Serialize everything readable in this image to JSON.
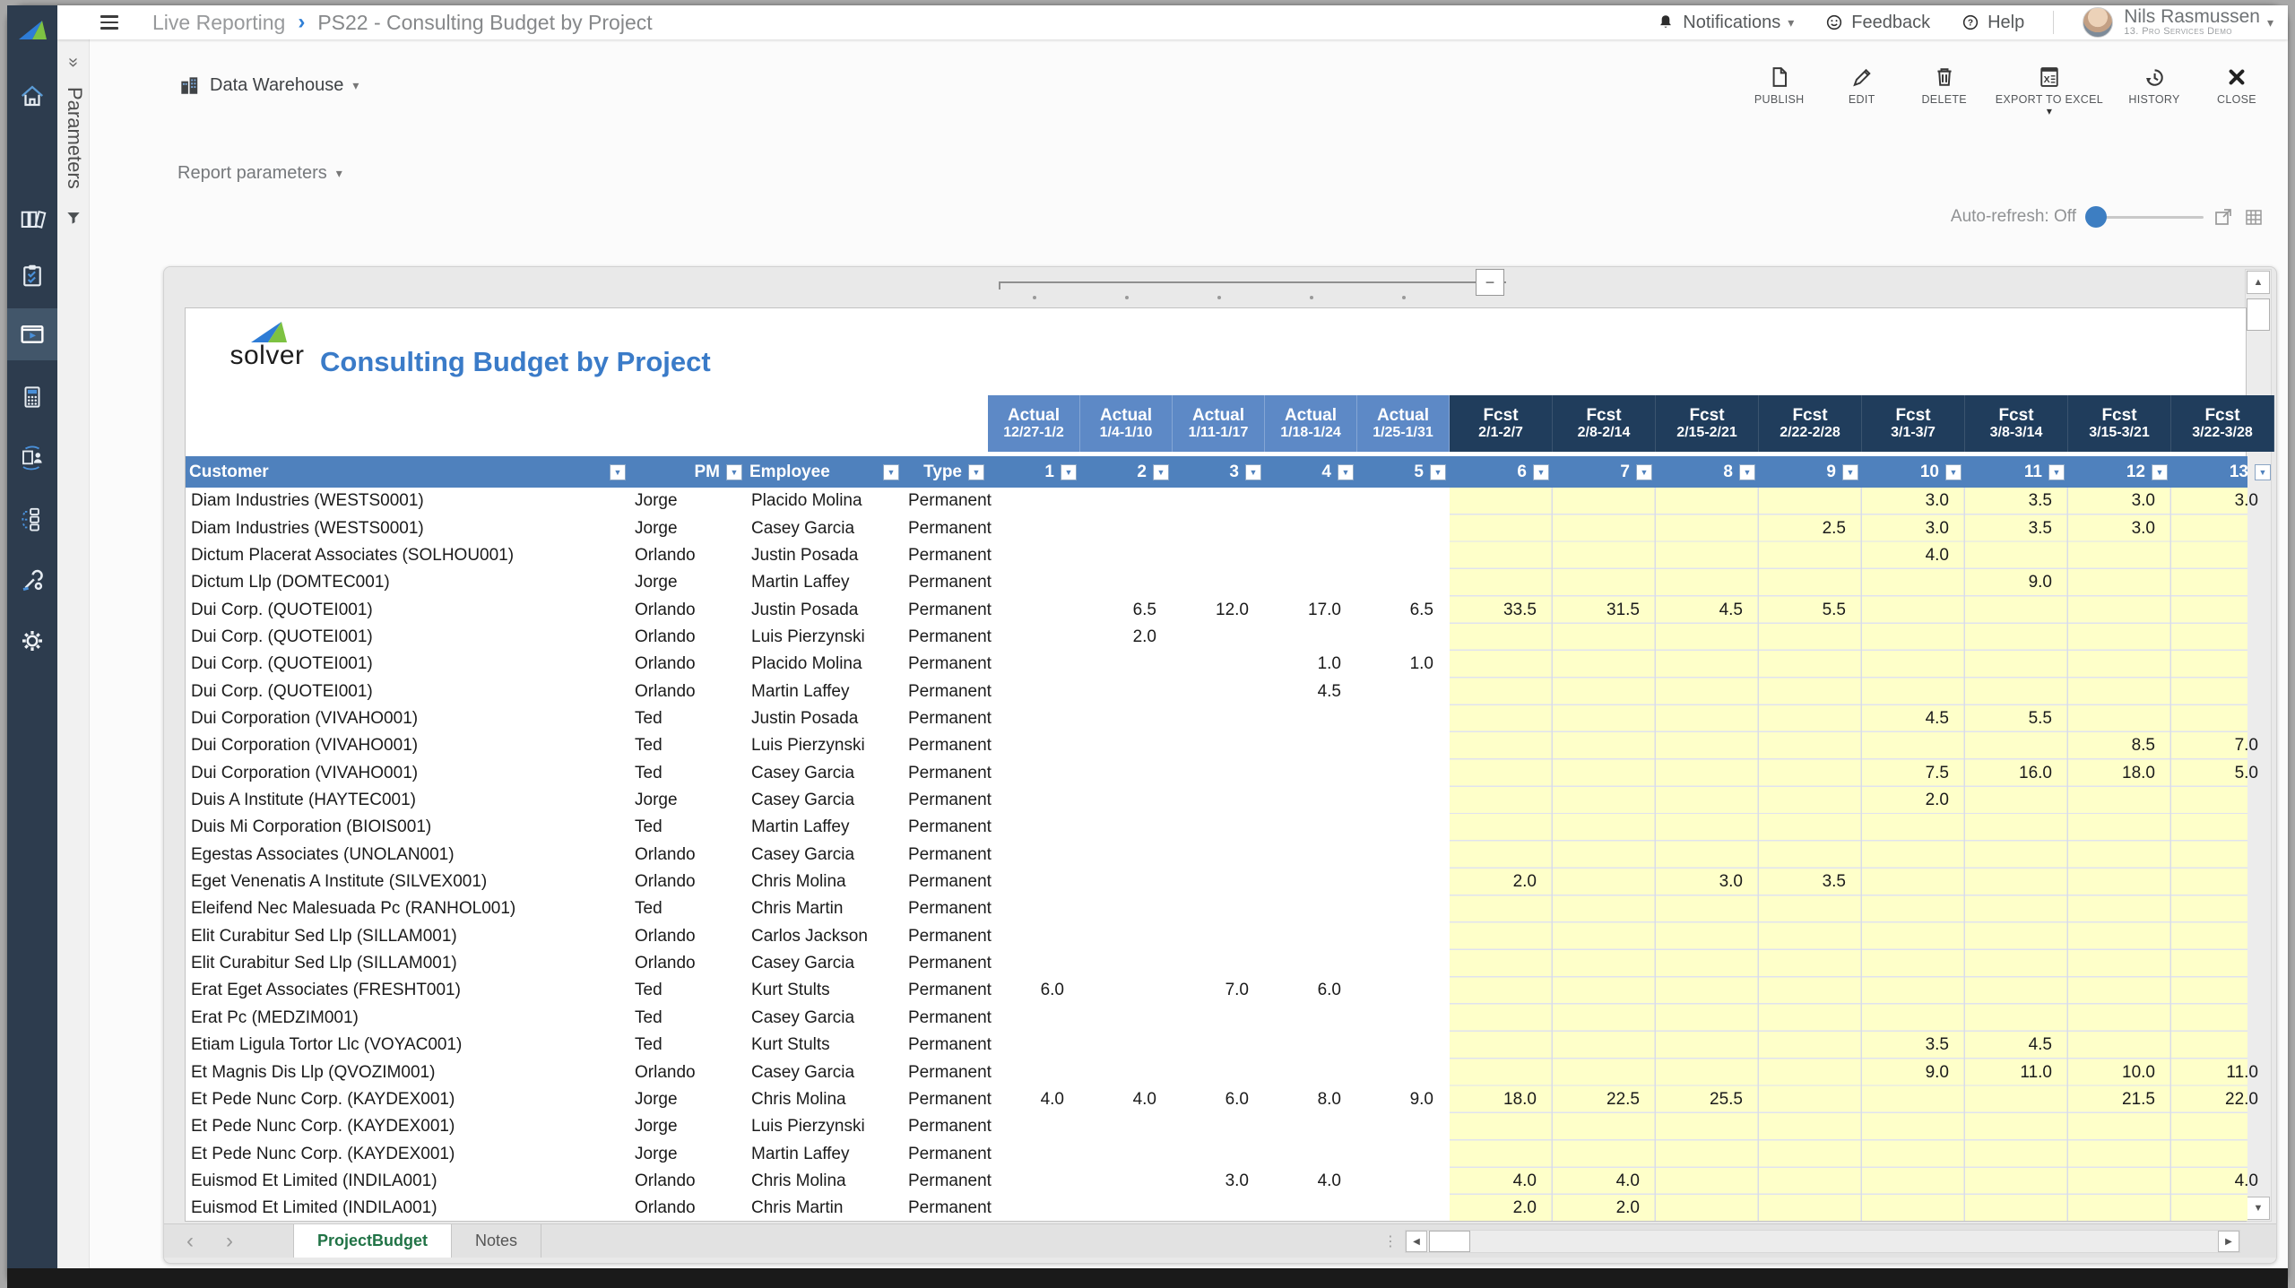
{
  "topbar": {
    "breadcrumb": {
      "section": "Live Reporting",
      "separator": "›",
      "page": "PS22 - Consulting Budget by Project"
    },
    "notifications_label": "Notifications",
    "feedback_label": "Feedback",
    "help_label": "Help",
    "user": {
      "name": "Nils Rasmussen",
      "tenant": "13. Pro Services Demo"
    }
  },
  "sidebar": {
    "items": [
      {
        "name": "home"
      },
      {
        "name": "archives"
      },
      {
        "name": "tasks"
      },
      {
        "name": "reporting",
        "active": true
      },
      {
        "name": "budgeting"
      },
      {
        "name": "collaboration"
      },
      {
        "name": "workflow"
      },
      {
        "name": "administration"
      },
      {
        "name": "settings"
      }
    ]
  },
  "parameters_rail": {
    "label": "Parameters",
    "collapse_glyph": "»"
  },
  "toolbar": {
    "source_label": "Data Warehouse",
    "buttons": [
      {
        "label": "PUBLISH"
      },
      {
        "label": "EDIT"
      },
      {
        "label": "DELETE"
      },
      {
        "label": "EXPORT TO EXCEL",
        "has_dropdown": true
      },
      {
        "label": "HISTORY"
      },
      {
        "label": "CLOSE"
      }
    ]
  },
  "report_controls": {
    "parameters_label": "Report parameters",
    "auto_refresh_label": "Auto-refresh: Off"
  },
  "report": {
    "brand": "solver",
    "title": "Consulting Budget by Project",
    "column_groups": [
      {
        "label": "Actual",
        "period": "12/27-1/2",
        "kind": "actual"
      },
      {
        "label": "Actual",
        "period": "1/4-1/10",
        "kind": "actual"
      },
      {
        "label": "Actual",
        "period": "1/11-1/17",
        "kind": "actual"
      },
      {
        "label": "Actual",
        "period": "1/18-1/24",
        "kind": "actual"
      },
      {
        "label": "Actual",
        "period": "1/25-1/31",
        "kind": "actual"
      },
      {
        "label": "Fcst",
        "period": "2/1-2/7",
        "kind": "fcst"
      },
      {
        "label": "Fcst",
        "period": "2/8-2/14",
        "kind": "fcst"
      },
      {
        "label": "Fcst",
        "period": "2/15-2/21",
        "kind": "fcst"
      },
      {
        "label": "Fcst",
        "period": "2/22-2/28",
        "kind": "fcst"
      },
      {
        "label": "Fcst",
        "period": "3/1-3/7",
        "kind": "fcst"
      },
      {
        "label": "Fcst",
        "period": "3/8-3/14",
        "kind": "fcst"
      },
      {
        "label": "Fcst",
        "period": "3/15-3/21",
        "kind": "fcst"
      },
      {
        "label": "Fcst",
        "period": "3/22-3/28",
        "kind": "fcst"
      }
    ],
    "headers": [
      "Customer",
      "PM",
      "Employee",
      "Type",
      "1",
      "2",
      "3",
      "4",
      "5",
      "6",
      "7",
      "8",
      "9",
      "10",
      "11",
      "12",
      "13"
    ],
    "rows": [
      {
        "customer": "Diam Industries (WESTS0001)",
        "pm": "Jorge",
        "employee": "Placido Molina",
        "type": "Permanent",
        "values": [
          "",
          "",
          "",
          "",
          "",
          "",
          "",
          "",
          "",
          "3.0",
          "3.5",
          "3.0",
          "3.0"
        ]
      },
      {
        "customer": "Diam Industries (WESTS0001)",
        "pm": "Jorge",
        "employee": "Casey Garcia",
        "type": "Permanent",
        "values": [
          "",
          "",
          "",
          "",
          "",
          "",
          "",
          "",
          "2.5",
          "3.0",
          "3.5",
          "3.0",
          ""
        ]
      },
      {
        "customer": "Dictum Placerat Associates (SOLHOU001)",
        "pm": "Orlando",
        "employee": "Justin Posada",
        "type": "Permanent",
        "values": [
          "",
          "",
          "",
          "",
          "",
          "",
          "",
          "",
          "",
          "4.0",
          "",
          "",
          ""
        ]
      },
      {
        "customer": "Dictum Llp (DOMTEC001)",
        "pm": "Jorge",
        "employee": "Martin Laffey",
        "type": "Permanent",
        "values": [
          "",
          "",
          "",
          "",
          "",
          "",
          "",
          "",
          "",
          "",
          "9.0",
          "",
          ""
        ]
      },
      {
        "customer": "Dui Corp. (QUOTEI001)",
        "pm": "Orlando",
        "employee": "Justin Posada",
        "type": "Permanent",
        "values": [
          "",
          "6.5",
          "12.0",
          "17.0",
          "6.5",
          "33.5",
          "31.5",
          "4.5",
          "5.5",
          "",
          "",
          "",
          ""
        ]
      },
      {
        "customer": "Dui Corp. (QUOTEI001)",
        "pm": "Orlando",
        "employee": "Luis Pierzynski",
        "type": "Permanent",
        "values": [
          "",
          "2.0",
          "",
          "",
          "",
          "",
          "",
          "",
          "",
          "",
          "",
          "",
          ""
        ]
      },
      {
        "customer": "Dui Corp. (QUOTEI001)",
        "pm": "Orlando",
        "employee": "Placido Molina",
        "type": "Permanent",
        "values": [
          "",
          "",
          "",
          "1.0",
          "1.0",
          "",
          "",
          "",
          "",
          "",
          "",
          "",
          ""
        ]
      },
      {
        "customer": "Dui Corp. (QUOTEI001)",
        "pm": "Orlando",
        "employee": "Martin Laffey",
        "type": "Permanent",
        "values": [
          "",
          "",
          "",
          "4.5",
          "",
          "",
          "",
          "",
          "",
          "",
          "",
          "",
          ""
        ]
      },
      {
        "customer": "Dui Corporation (VIVAHO001)",
        "pm": "Ted",
        "employee": "Justin Posada",
        "type": "Permanent",
        "values": [
          "",
          "",
          "",
          "",
          "",
          "",
          "",
          "",
          "",
          "4.5",
          "5.5",
          "",
          ""
        ]
      },
      {
        "customer": "Dui Corporation (VIVAHO001)",
        "pm": "Ted",
        "employee": "Luis Pierzynski",
        "type": "Permanent",
        "values": [
          "",
          "",
          "",
          "",
          "",
          "",
          "",
          "",
          "",
          "",
          "",
          "8.5",
          "7.0"
        ]
      },
      {
        "customer": "Dui Corporation (VIVAHO001)",
        "pm": "Ted",
        "employee": "Casey Garcia",
        "type": "Permanent",
        "values": [
          "",
          "",
          "",
          "",
          "",
          "",
          "",
          "",
          "",
          "7.5",
          "16.0",
          "18.0",
          "5.0"
        ]
      },
      {
        "customer": "Duis A Institute (HAYTEC001)",
        "pm": "Jorge",
        "employee": "Casey Garcia",
        "type": "Permanent",
        "values": [
          "",
          "",
          "",
          "",
          "",
          "",
          "",
          "",
          "",
          "2.0",
          "",
          "",
          ""
        ]
      },
      {
        "customer": "Duis Mi Corporation (BIOIS001)",
        "pm": "Ted",
        "employee": "Martin Laffey",
        "type": "Permanent",
        "values": [
          "",
          "",
          "",
          "",
          "",
          "",
          "",
          "",
          "",
          "",
          "",
          "",
          ""
        ]
      },
      {
        "customer": "Egestas Associates (UNOLAN001)",
        "pm": "Orlando",
        "employee": "Casey Garcia",
        "type": "Permanent",
        "values": [
          "",
          "",
          "",
          "",
          "",
          "",
          "",
          "",
          "",
          "",
          "",
          "",
          ""
        ]
      },
      {
        "customer": "Eget Venenatis A Institute (SILVEX001)",
        "pm": "Orlando",
        "employee": "Chris Molina",
        "type": "Permanent",
        "values": [
          "",
          "",
          "",
          "",
          "",
          "2.0",
          "",
          "3.0",
          "3.5",
          "",
          "",
          "",
          ""
        ]
      },
      {
        "customer": "Eleifend Nec Malesuada Pc (RANHOL001)",
        "pm": "Ted",
        "employee": "Chris Martin",
        "type": "Permanent",
        "values": [
          "",
          "",
          "",
          "",
          "",
          "",
          "",
          "",
          "",
          "",
          "",
          "",
          ""
        ]
      },
      {
        "customer": "Elit Curabitur Sed Llp (SILLAM001)",
        "pm": "Orlando",
        "employee": "Carlos Jackson",
        "type": "Permanent",
        "values": [
          "",
          "",
          "",
          "",
          "",
          "",
          "",
          "",
          "",
          "",
          "",
          "",
          ""
        ]
      },
      {
        "customer": "Elit Curabitur Sed Llp (SILLAM001)",
        "pm": "Orlando",
        "employee": "Casey Garcia",
        "type": "Permanent",
        "values": [
          "",
          "",
          "",
          "",
          "",
          "",
          "",
          "",
          "",
          "",
          "",
          "",
          ""
        ]
      },
      {
        "customer": "Erat Eget Associates (FRESHT001)",
        "pm": "Ted",
        "employee": "Kurt Stults",
        "type": "Permanent",
        "values": [
          "6.0",
          "",
          "7.0",
          "6.0",
          "",
          "",
          "",
          "",
          "",
          "",
          "",
          "",
          ""
        ]
      },
      {
        "customer": "Erat Pc (MEDZIM001)",
        "pm": "Ted",
        "employee": "Casey Garcia",
        "type": "Permanent",
        "values": [
          "",
          "",
          "",
          "",
          "",
          "",
          "",
          "",
          "",
          "",
          "",
          "",
          ""
        ]
      },
      {
        "customer": "Etiam Ligula Tortor Llc (VOYAC001)",
        "pm": "Ted",
        "employee": "Kurt Stults",
        "type": "Permanent",
        "values": [
          "",
          "",
          "",
          "",
          "",
          "",
          "",
          "",
          "",
          "3.5",
          "4.5",
          "",
          ""
        ]
      },
      {
        "customer": "Et Magnis Dis Llp (QVOZIM001)",
        "pm": "Orlando",
        "employee": "Casey Garcia",
        "type": "Permanent",
        "values": [
          "",
          "",
          "",
          "",
          "",
          "",
          "",
          "",
          "",
          "9.0",
          "11.0",
          "10.0",
          "11.0"
        ]
      },
      {
        "customer": "Et Pede Nunc Corp. (KAYDEX001)",
        "pm": "Jorge",
        "employee": "Chris Molina",
        "type": "Permanent",
        "values": [
          "4.0",
          "4.0",
          "6.0",
          "8.0",
          "9.0",
          "18.0",
          "22.5",
          "25.5",
          "",
          "",
          "",
          "21.5",
          "22.0"
        ]
      },
      {
        "customer": "Et Pede Nunc Corp. (KAYDEX001)",
        "pm": "Jorge",
        "employee": "Luis Pierzynski",
        "type": "Permanent",
        "values": [
          "",
          "",
          "",
          "",
          "",
          "",
          "",
          "",
          "",
          "",
          "",
          "",
          ""
        ]
      },
      {
        "customer": "Et Pede Nunc Corp. (KAYDEX001)",
        "pm": "Jorge",
        "employee": "Martin Laffey",
        "type": "Permanent",
        "values": [
          "",
          "",
          "",
          "",
          "",
          "",
          "",
          "",
          "",
          "",
          "",
          "",
          ""
        ]
      },
      {
        "customer": "Euismod Et Limited (INDILA001)",
        "pm": "Orlando",
        "employee": "Chris Molina",
        "type": "Permanent",
        "values": [
          "",
          "",
          "3.0",
          "4.0",
          "",
          "4.0",
          "4.0",
          "",
          "",
          "",
          "",
          "",
          "4.0"
        ]
      },
      {
        "customer": "Euismod Et Limited (INDILA001)",
        "pm": "Orlando",
        "employee": "Chris Martin",
        "type": "Permanent",
        "values": [
          "",
          "",
          "",
          "",
          "",
          "2.0",
          "2.0",
          "",
          "",
          "",
          "",
          "",
          ""
        ]
      }
    ],
    "tabs": [
      {
        "label": "ProjectBudget",
        "active": true
      },
      {
        "label": "Notes",
        "active": false
      }
    ]
  },
  "glyphs": {
    "caret_down": "▾",
    "filter": "▼",
    "scroll_up": "▲",
    "scroll_down": "▼",
    "scroll_left": "◀",
    "scroll_right": "▶",
    "tab_prev": "‹",
    "tab_next": "›",
    "collapse_right": "»",
    "minus": "−",
    "grip_dots": "⋮"
  },
  "colors": {
    "sidebar_bg": "#2d3c4e",
    "header_blue": "#4f81bd",
    "actual_header": "#5d89c6",
    "fcst_header": "#203d5c",
    "forecast_bg": "#feffc9",
    "title_blue": "#3a7bc8",
    "active_tab_green": "#217346",
    "auto_refresh_knob": "#3d7ec2",
    "breadcrumb_sep_blue": "#2f7fd6"
  }
}
